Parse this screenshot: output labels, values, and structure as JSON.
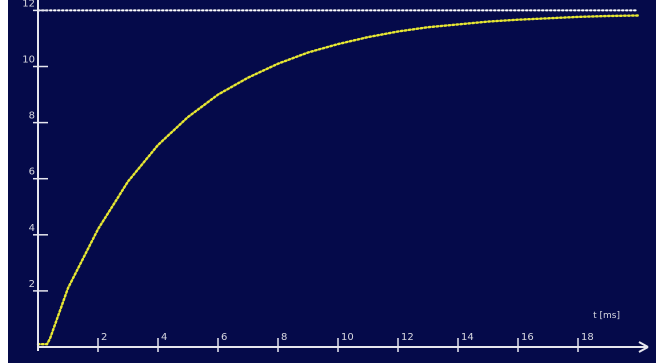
{
  "chart_data": {
    "type": "line",
    "title": "",
    "xlabel": "t [ms]",
    "ylabel": "",
    "xlim": [
      0,
      20
    ],
    "ylim": [
      0,
      12.3
    ],
    "x_ticks": [
      2,
      4,
      6,
      8,
      10,
      12,
      14,
      16,
      18
    ],
    "y_ticks": [
      2,
      4,
      6,
      8,
      10,
      12
    ],
    "x_tick_labels": [
      "2",
      "4",
      "6",
      "8",
      "10",
      "12",
      "14",
      "16",
      "18"
    ],
    "y_tick_labels": [
      "2",
      "4",
      "6",
      "8",
      "10",
      "12"
    ],
    "grid": false,
    "legend": "none",
    "series": [
      {
        "color": "#e8e832",
        "style": "dotted",
        "x": [
          0,
          0.3,
          0.4,
          1,
          2,
          3,
          4,
          5,
          6,
          7,
          8,
          9,
          10,
          11,
          12,
          13,
          14,
          15,
          16,
          17,
          18,
          19,
          20
        ],
        "y": [
          0.1,
          0.1,
          0.3,
          2.1,
          4.2,
          5.9,
          7.2,
          8.2,
          9.0,
          9.6,
          10.1,
          10.5,
          10.8,
          11.05,
          11.25,
          11.4,
          11.5,
          11.6,
          11.67,
          11.72,
          11.77,
          11.8,
          11.82
        ]
      },
      {
        "color": "#ffffff",
        "style": "dotted",
        "x": [
          0,
          20
        ],
        "y": [
          12.0,
          12.0
        ]
      }
    ]
  },
  "colors": {
    "background": "#050a4a",
    "axis": "#e6e6ee",
    "curve": "#e8e832",
    "reference": "#ffffff",
    "text": "#d8d8e0"
  }
}
